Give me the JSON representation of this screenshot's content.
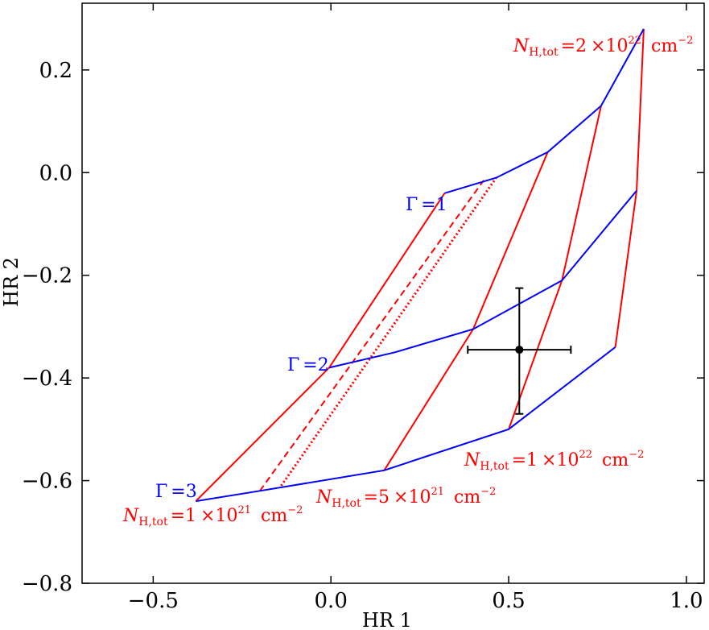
{
  "chart_data": {
    "type": "line",
    "xlabel": "HR 1",
    "ylabel": "HR 2",
    "xlim": [
      -0.7,
      1.05
    ],
    "ylim": [
      -0.8,
      0.33
    ],
    "xticks": [
      -0.5,
      0.0,
      0.5,
      1.0
    ],
    "xtick_labels": [
      "−0.5",
      "0.0",
      "0.5",
      "1.0"
    ],
    "yticks": [
      -0.8,
      -0.6,
      -0.4,
      -0.2,
      0.0,
      0.2
    ],
    "ytick_labels": [
      "−0.8",
      "−0.6",
      "−0.4",
      "−0.2",
      "0.0",
      "0.2"
    ],
    "grid": false,
    "colors": {
      "gamma": "#0000ff",
      "nh": "#ff0000",
      "data": "#000000"
    },
    "gamma_lines": [
      {
        "label": "Γ =1",
        "points": [
          [
            0.32,
            -0.04
          ],
          [
            0.465,
            -0.01
          ],
          [
            0.61,
            0.04
          ],
          [
            0.76,
            0.13
          ],
          [
            0.88,
            0.28
          ]
        ]
      },
      {
        "label": "Γ =2",
        "points": [
          [
            -0.005,
            -0.38
          ],
          [
            0.18,
            -0.35
          ],
          [
            0.4,
            -0.305
          ],
          [
            0.65,
            -0.21
          ],
          [
            0.86,
            -0.035
          ]
        ]
      },
      {
        "label": "Γ =3",
        "points": [
          [
            -0.38,
            -0.64
          ],
          [
            -0.2,
            -0.62
          ],
          [
            0.15,
            -0.58
          ],
          [
            0.5,
            -0.5
          ],
          [
            0.8,
            -0.34
          ]
        ]
      }
    ],
    "nh_lines": [
      {
        "label": "1 ×10²¹",
        "style": "solid",
        "points": [
          [
            -0.38,
            -0.64
          ],
          [
            -0.005,
            -0.38
          ],
          [
            0.32,
            -0.04
          ]
        ]
      },
      {
        "label": "",
        "style": "dashed",
        "points": [
          [
            -0.2,
            -0.62
          ],
          [
            0.43,
            -0.015
          ]
        ]
      },
      {
        "label": "",
        "style": "dotted",
        "points": [
          [
            -0.14,
            -0.61
          ],
          [
            0.465,
            -0.01
          ]
        ]
      },
      {
        "label": "5 ×10²¹",
        "style": "solid",
        "points": [
          [
            0.15,
            -0.58
          ],
          [
            0.4,
            -0.305
          ],
          [
            0.61,
            0.04
          ]
        ]
      },
      {
        "label": "1 ×10²²",
        "style": "solid",
        "points": [
          [
            0.5,
            -0.5
          ],
          [
            0.65,
            -0.21
          ],
          [
            0.76,
            0.13
          ]
        ]
      },
      {
        "label": "2 ×10²²",
        "style": "solid",
        "points": [
          [
            0.8,
            -0.34
          ],
          [
            0.86,
            -0.035
          ],
          [
            0.88,
            0.28
          ]
        ]
      }
    ],
    "data_point": {
      "x": 0.53,
      "y": -0.345,
      "xerr": [
        0.145,
        0.145
      ],
      "yerr": [
        0.125,
        0.12
      ]
    },
    "annotations": {
      "gamma1": {
        "prefix": "Γ",
        "value": "1"
      },
      "gamma2": {
        "prefix": "Γ",
        "value": "2"
      },
      "gamma3": {
        "prefix": "Γ",
        "value": "3"
      },
      "nh1": {
        "sym": "N",
        "sub": "H,tot",
        "mant": "1",
        "exp": "21",
        "unit": "cm",
        "unit_exp": "−2"
      },
      "nh5": {
        "sym": "N",
        "sub": "H,tot",
        "mant": "5",
        "exp": "21",
        "unit": "cm",
        "unit_exp": "−2"
      },
      "nh10": {
        "sym": "N",
        "sub": "H,tot",
        "mant": "1",
        "exp": "22",
        "unit": "cm",
        "unit_exp": "−2"
      },
      "nh20": {
        "sym": "N",
        "sub": "H,tot",
        "mant": "2",
        "exp": "22",
        "unit": "cm",
        "unit_exp": "−2"
      }
    }
  }
}
